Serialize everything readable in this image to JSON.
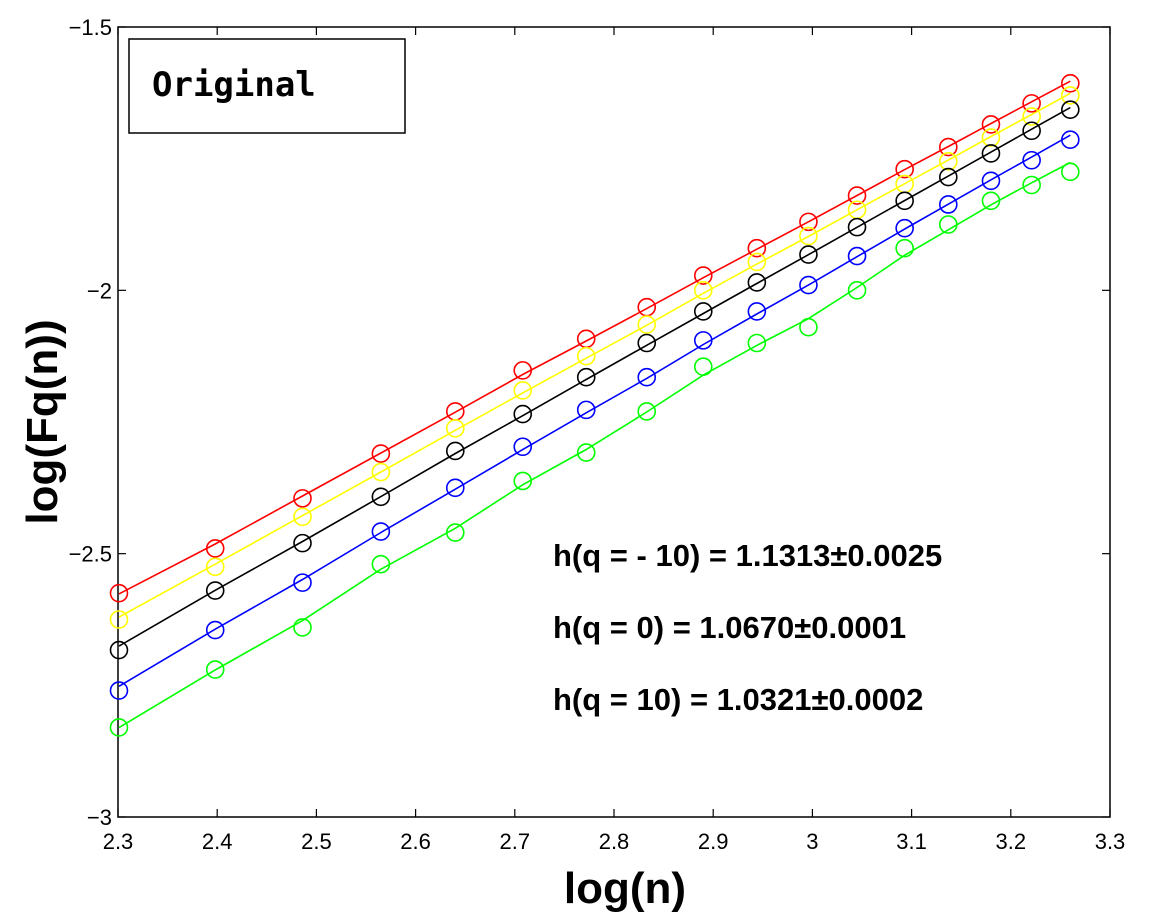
{
  "chart_data": {
    "type": "line",
    "legend": "Original",
    "xlabel": "log(n)",
    "ylabel": "log(Fq(n))",
    "xlim": [
      2.3,
      3.3
    ],
    "ylim": [
      -3,
      -1.5
    ],
    "xticks": [
      2.3,
      2.4,
      2.5,
      2.6,
      2.7,
      2.8,
      2.9,
      3,
      3.1,
      3.2,
      3.3
    ],
    "xtick_labels": [
      "2.3",
      "2.4",
      "2.5",
      "2.6",
      "2.7",
      "2.8",
      "2.9",
      "3",
      "3.1",
      "3.2",
      "3.3"
    ],
    "yticks": [
      -3,
      -2.5,
      -2,
      -1.5
    ],
    "ytick_labels": [
      "−3",
      "−2.5",
      "−2",
      "−1.5"
    ],
    "grid": false,
    "x": [
      2.301,
      2.398,
      2.486,
      2.565,
      2.64,
      2.708,
      2.772,
      2.833,
      2.89,
      2.944,
      2.996,
      3.045,
      3.093,
      3.137,
      3.18,
      3.221,
      3.26
    ],
    "series": [
      {
        "color": "#ff0000",
        "values": [
          -2.575,
          -2.49,
          -2.395,
          -2.31,
          -2.23,
          -2.152,
          -2.092,
          -2.032,
          -1.972,
          -1.92,
          -1.87,
          -1.82,
          -1.77,
          -1.728,
          -1.685,
          -1.645,
          -1.607
        ]
      },
      {
        "color": "#ffff00",
        "values": [
          -2.625,
          -2.525,
          -2.43,
          -2.345,
          -2.262,
          -2.19,
          -2.125,
          -2.065,
          -2.0,
          -1.946,
          -1.897,
          -1.847,
          -1.798,
          -1.755,
          -1.71,
          -1.67,
          -1.63
        ]
      },
      {
        "color": "#000000",
        "values": [
          -2.683,
          -2.57,
          -2.48,
          -2.392,
          -2.305,
          -2.235,
          -2.165,
          -2.1,
          -2.04,
          -1.985,
          -1.932,
          -1.88,
          -1.83,
          -1.785,
          -1.74,
          -1.697,
          -1.657
        ]
      },
      {
        "color": "#0000ff",
        "values": [
          -2.76,
          -2.645,
          -2.555,
          -2.458,
          -2.375,
          -2.297,
          -2.227,
          -2.165,
          -2.095,
          -2.04,
          -1.99,
          -1.935,
          -1.882,
          -1.837,
          -1.792,
          -1.753,
          -1.714
        ]
      },
      {
        "color": "#00ff00",
        "values": [
          -2.83,
          -2.72,
          -2.64,
          -2.52,
          -2.46,
          -2.362,
          -2.308,
          -2.23,
          -2.145,
          -2.1,
          -2.07,
          -2.0,
          -1.92,
          -1.875,
          -1.83,
          -1.8,
          -1.775
        ]
      }
    ],
    "annotations": [
      "h(q = - 10) = 1.1313±0.0025",
      "h(q = 0) = 1.0670±0.0001",
      "h(q = 10) = 1.0321±0.0002"
    ]
  }
}
